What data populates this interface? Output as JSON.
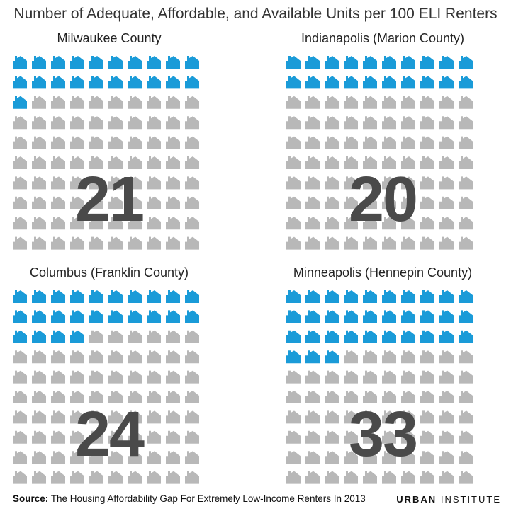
{
  "title": "Number of Adequate, Affordable, and Available Units per 100 ELI Renters",
  "footer": {
    "source_label": "Source:",
    "source_text": "The Housing Affordability Gap For Extremely Low-Income Renters In 2013"
  },
  "brand": {
    "part1": "URBAN",
    "part2": "INSTITUTE"
  },
  "colors": {
    "filled": "#1a9bd8",
    "empty": "#b8b8b8",
    "number": "#4a4a4a"
  },
  "chart_data": [
    {
      "type": "waffle",
      "title": "Milwaukee County",
      "value": 21,
      "total": 100,
      "label": "21"
    },
    {
      "type": "waffle",
      "title": "Indianapolis (Marion County)",
      "value": 20,
      "total": 100,
      "label": "20"
    },
    {
      "type": "waffle",
      "title": "Columbus  (Franklin County)",
      "value": 24,
      "total": 100,
      "label": "24"
    },
    {
      "type": "waffle",
      "title": "Minneapolis (Hennepin County)",
      "value": 33,
      "total": 100,
      "label": "33"
    }
  ]
}
